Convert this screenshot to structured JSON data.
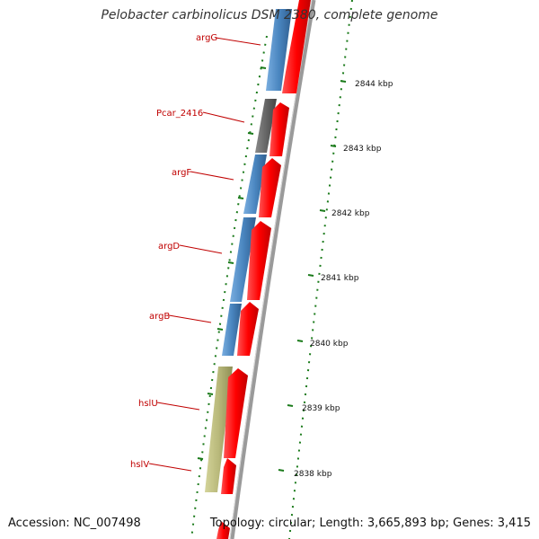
{
  "title": "Pelobacter carbinolicus DSM 2380, complete genome",
  "footer": {
    "accession": "Accession: NC_007498",
    "summary": "Topology: circular; Length: 3,665,893 bp; Genes: 3,415"
  },
  "scale_labels": [
    "2844 kbp",
    "2843 kbp",
    "2842 kbp",
    "2841 kbp",
    "2840 kbp",
    "2839 kbp",
    "2838 kbp"
  ],
  "gene_labels": [
    "argG",
    "Pcar_2416",
    "argF",
    "argD",
    "argB",
    "hslU",
    "hslV"
  ],
  "colors": {
    "cds": "#ff0000",
    "gene_blue": "#4a86c0",
    "gene_gray": "#666666",
    "gene_olive": "#b8b87a",
    "label": "#c00000",
    "scale": "#1a7a1a",
    "backbone": "#888888"
  }
}
